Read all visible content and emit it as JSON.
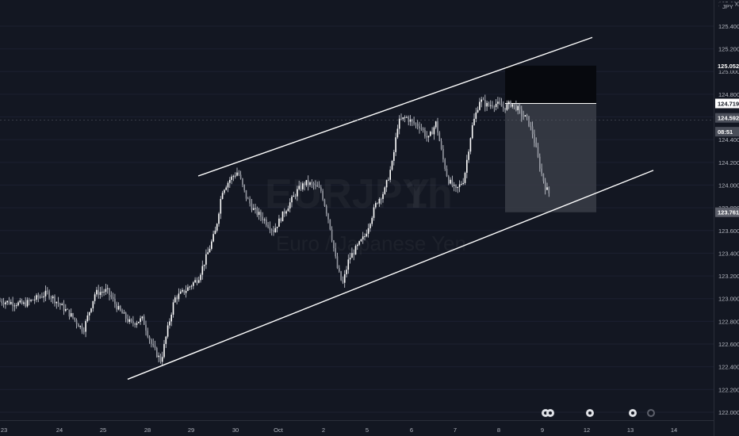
{
  "chart_data": {
    "type": "candlestick",
    "symbol": "EURJPY",
    "interval": "1h",
    "description": "Euro / Japanese Yen",
    "currency": "JPY",
    "x_ticks": [
      "23",
      "24",
      "25",
      "28",
      "29",
      "30",
      "Oct",
      "2",
      "5",
      "6",
      "7",
      "8",
      "9",
      "12",
      "13",
      "14"
    ],
    "y_ticks": [
      "125.400",
      "125.200",
      "125.000",
      "124.800",
      "124.600",
      "124.400",
      "124.200",
      "124.000",
      "123.800",
      "123.600",
      "123.400",
      "123.200",
      "123.000",
      "122.800",
      "122.600",
      "122.400",
      "122.200",
      "122.000"
    ],
    "y_top_label": "125.600",
    "ylim": [
      121.93,
      125.63
    ],
    "price_badges": [
      {
        "label": "125.052",
        "value": 125.052,
        "bg": "#131722",
        "fg": "#ffffff"
      },
      {
        "label": "124.719",
        "value": 124.719,
        "bg": "#ffffff",
        "fg": "#131722"
      },
      {
        "label": "124.592",
        "value": 124.592,
        "bg": "#4a4e59",
        "fg": "#ffffff"
      },
      {
        "label": "08:51",
        "value": 124.47,
        "bg": "#4a4e59",
        "fg": "#ffffff"
      },
      {
        "label": "123.761",
        "value": 123.761,
        "bg": "#5d606b",
        "fg": "#ffffff"
      }
    ],
    "position": {
      "entry": 124.719,
      "stop": 125.052,
      "target": 123.761
    },
    "channel_upper": {
      "start": [
        250,
        124.08
      ],
      "end": [
        747,
        125.3
      ]
    },
    "channel_lower": {
      "start": [
        161,
        122.29
      ],
      "end": [
        824,
        124.13
      ]
    },
    "price_anchors": [
      [
        0,
        122.98
      ],
      [
        30,
        122.95
      ],
      [
        60,
        123.05
      ],
      [
        90,
        122.85
      ],
      [
        105,
        122.72
      ],
      [
        120,
        123.05
      ],
      [
        135,
        123.07
      ],
      [
        150,
        122.9
      ],
      [
        165,
        122.78
      ],
      [
        180,
        122.82
      ],
      [
        192,
        122.58
      ],
      [
        203,
        122.45
      ],
      [
        212,
        122.75
      ],
      [
        220,
        123.0
      ],
      [
        235,
        123.08
      ],
      [
        250,
        123.18
      ],
      [
        262,
        123.4
      ],
      [
        272,
        123.6
      ],
      [
        280,
        123.95
      ],
      [
        290,
        124.05
      ],
      [
        300,
        124.12
      ],
      [
        310,
        123.9
      ],
      [
        320,
        123.78
      ],
      [
        330,
        123.72
      ],
      [
        345,
        123.6
      ],
      [
        360,
        123.78
      ],
      [
        375,
        123.95
      ],
      [
        385,
        124.02
      ],
      [
        395,
        124.0
      ],
      [
        405,
        123.95
      ],
      [
        415,
        123.68
      ],
      [
        425,
        123.28
      ],
      [
        432,
        123.12
      ],
      [
        440,
        123.35
      ],
      [
        450,
        123.45
      ],
      [
        460,
        123.55
      ],
      [
        475,
        123.85
      ],
      [
        485,
        123.95
      ],
      [
        495,
        124.2
      ],
      [
        502,
        124.55
      ],
      [
        512,
        124.6
      ],
      [
        520,
        124.55
      ],
      [
        530,
        124.52
      ],
      [
        540,
        124.4
      ],
      [
        550,
        124.55
      ],
      [
        558,
        124.25
      ],
      [
        565,
        124.05
      ],
      [
        575,
        123.95
      ],
      [
        585,
        124.05
      ],
      [
        595,
        124.5
      ],
      [
        605,
        124.75
      ],
      [
        615,
        124.7
      ],
      [
        625,
        124.72
      ],
      [
        635,
        124.68
      ],
      [
        645,
        124.72
      ],
      [
        652,
        124.68
      ],
      [
        658,
        124.62
      ],
      [
        665,
        124.58
      ],
      [
        672,
        124.45
      ],
      [
        678,
        124.25
      ],
      [
        683,
        124.1
      ],
      [
        688,
        123.98
      ],
      [
        693,
        123.92
      ]
    ]
  }
}
